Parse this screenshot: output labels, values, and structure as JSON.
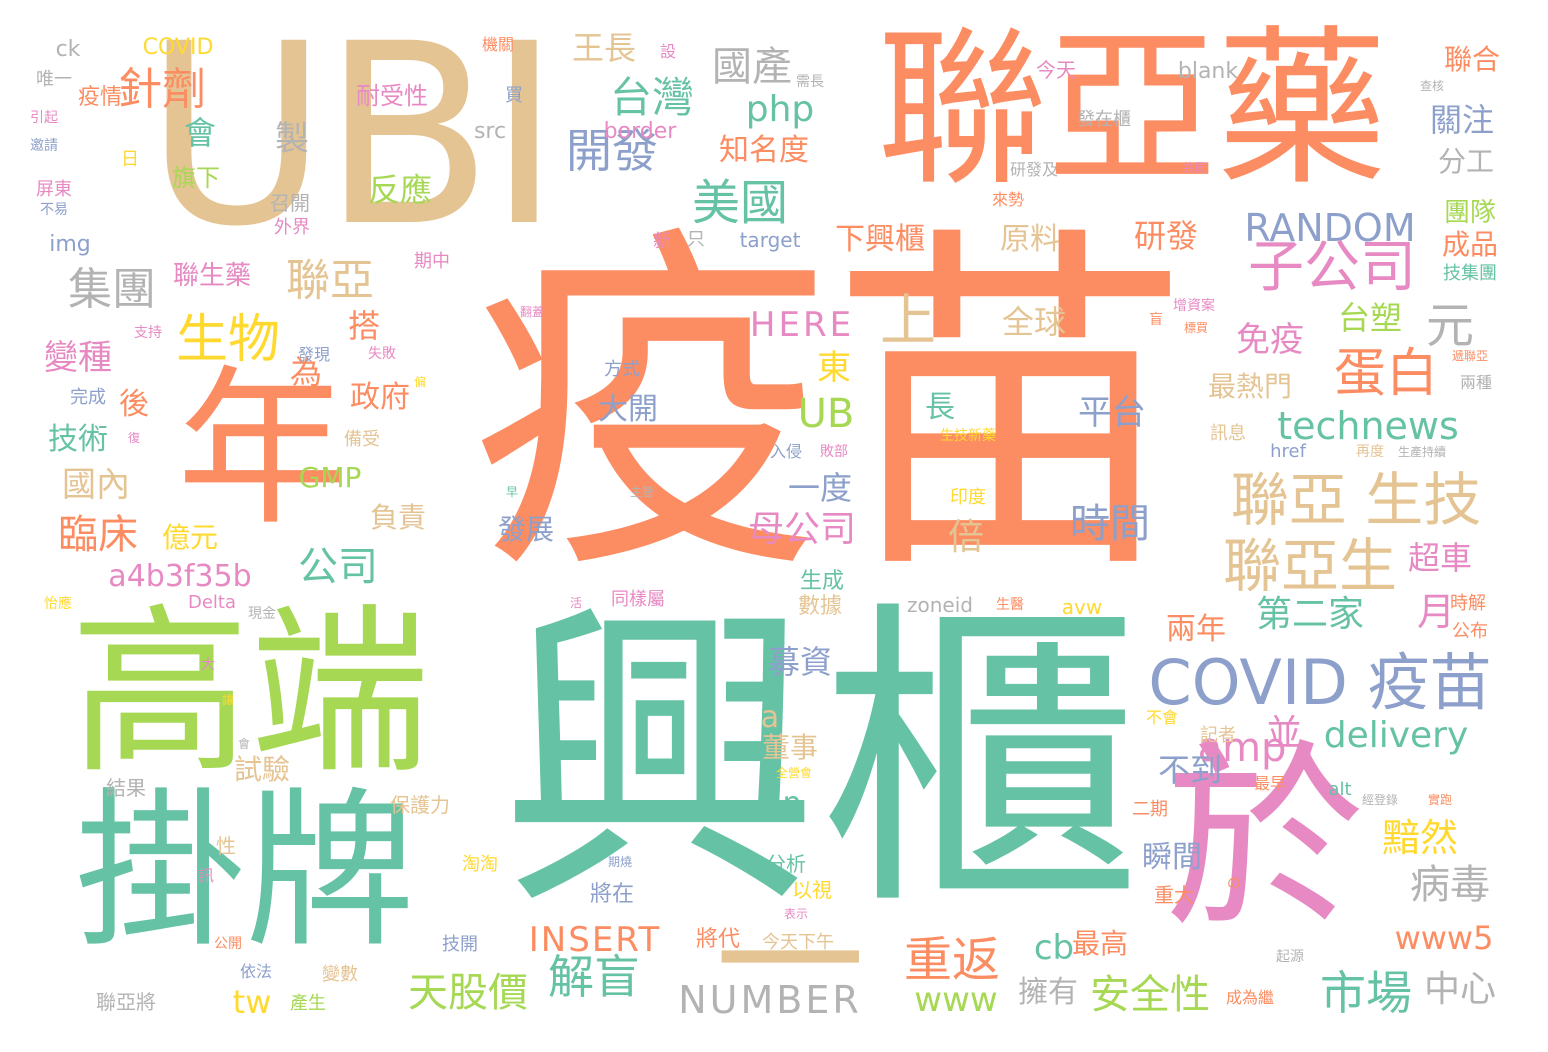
{
  "palette": {
    "green": "#66c2a5",
    "orange": "#fc8d62",
    "blue": "#8da0cb",
    "pink": "#e78ac3",
    "lime": "#a6d854",
    "yellow": "#ffd92f",
    "tan": "#e5c494",
    "gray": "#b3b3b3"
  },
  "words": [
    {
      "text": "疫苗",
      "color": "orange"
    },
    {
      "text": "興櫃",
      "color": "green"
    },
    {
      "text": "UBI",
      "color": "tan"
    },
    {
      "text": "聯亞藥",
      "color": "orange"
    },
    {
      "text": "高端",
      "color": "lime"
    },
    {
      "text": "掛牌",
      "color": "green"
    },
    {
      "text": "年",
      "color": "orange"
    },
    {
      "text": "於",
      "color": "pink"
    },
    {
      "text": "一",
      "color": "tan"
    },
    {
      "text": "COVID 疫苗",
      "color": "blue"
    },
    {
      "text": "聯亞 生技",
      "color": "tan"
    },
    {
      "text": "聯亞生",
      "color": "tan"
    },
    {
      "text": "子公司",
      "color": "pink"
    },
    {
      "text": "美國",
      "color": "green"
    },
    {
      "text": "生物",
      "color": "yellow"
    },
    {
      "text": "蛋白",
      "color": "orange"
    },
    {
      "text": "台灣",
      "color": "green"
    },
    {
      "text": "開發",
      "color": "blue"
    },
    {
      "text": "集團",
      "color": "gray"
    },
    {
      "text": "聯亞",
      "color": "tan"
    },
    {
      "text": "針劑",
      "color": "orange"
    },
    {
      "text": "國產",
      "color": "gray"
    },
    {
      "text": "重返",
      "color": "orange"
    },
    {
      "text": "市場",
      "color": "green"
    },
    {
      "text": "解盲",
      "color": "green"
    },
    {
      "text": "天股價",
      "color": "lime"
    },
    {
      "text": "安全性",
      "color": "lime"
    },
    {
      "text": "RANDOM",
      "color": "blue"
    },
    {
      "text": "technews",
      "color": "green"
    },
    {
      "text": "NUMBER",
      "color": "gray"
    },
    {
      "text": "amp",
      "color": "pink"
    },
    {
      "text": "delivery",
      "color": "green"
    },
    {
      "text": "公司",
      "color": "green"
    },
    {
      "text": "臨床",
      "color": "orange"
    },
    {
      "text": "a4b3f35b",
      "color": "pink"
    },
    {
      "text": "INSERT",
      "color": "orange"
    },
    {
      "text": "母公司",
      "color": "pink"
    },
    {
      "text": "第二家",
      "color": "green"
    },
    {
      "text": "病毒",
      "color": "gray"
    },
    {
      "text": "黯然",
      "color": "yellow"
    },
    {
      "text": "時間",
      "color": "blue"
    },
    {
      "text": "平台",
      "color": "blue"
    },
    {
      "text": "UB",
      "color": "lime"
    },
    {
      "text": "HERE",
      "color": "pink"
    },
    {
      "text": "www5",
      "color": "orange"
    },
    {
      "text": "中心",
      "color": "gray"
    },
    {
      "text": "www",
      "color": "lime"
    },
    {
      "text": "cb",
      "color": "green"
    },
    {
      "text": "tw",
      "color": "yellow"
    },
    {
      "text": "php",
      "color": "green"
    },
    {
      "text": "上",
      "color": "tan"
    },
    {
      "text": "元",
      "color": "gray"
    },
    {
      "text": "會",
      "color": "green"
    },
    {
      "text": "製",
      "color": "gray"
    },
    {
      "text": "反應",
      "color": "lime"
    },
    {
      "text": "知名度",
      "color": "orange"
    },
    {
      "text": "王長",
      "color": "tan"
    },
    {
      "text": "下興櫃",
      "color": "orange"
    },
    {
      "text": "原料",
      "color": "tan"
    },
    {
      "text": "研發",
      "color": "orange"
    },
    {
      "text": "全球",
      "color": "tan"
    },
    {
      "text": "免疫",
      "color": "pink"
    },
    {
      "text": "台塑",
      "color": "lime"
    },
    {
      "text": "關注",
      "color": "blue"
    },
    {
      "text": "分工",
      "color": "gray"
    },
    {
      "text": "團隊",
      "color": "lime"
    },
    {
      "text": "成品",
      "color": "orange"
    },
    {
      "text": "聯合",
      "color": "orange"
    },
    {
      "text": "最熱門",
      "color": "tan"
    },
    {
      "text": "長",
      "color": "green"
    },
    {
      "text": "倍",
      "color": "tan"
    },
    {
      "text": "一度",
      "color": "blue"
    },
    {
      "text": "大開",
      "color": "blue"
    },
    {
      "text": "發展",
      "color": "blue"
    },
    {
      "text": "募資",
      "color": "blue"
    },
    {
      "text": "董事",
      "color": "tan"
    },
    {
      "text": "不到",
      "color": "blue"
    },
    {
      "text": "瞬間",
      "color": "blue"
    },
    {
      "text": "兩年",
      "color": "orange"
    },
    {
      "text": "月",
      "color": "pink"
    },
    {
      "text": "超車",
      "color": "pink"
    },
    {
      "text": "並",
      "color": "pink"
    },
    {
      "text": "n",
      "color": "green"
    },
    {
      "text": "a",
      "color": "tan"
    },
    {
      "text": "試驗",
      "color": "tan"
    },
    {
      "text": "擁有",
      "color": "gray"
    },
    {
      "text": "最高",
      "color": "orange"
    },
    {
      "text": "變種",
      "color": "pink"
    },
    {
      "text": "技術",
      "color": "green"
    },
    {
      "text": "國內",
      "color": "tan"
    },
    {
      "text": "億元",
      "color": "yellow"
    },
    {
      "text": "後",
      "color": "orange"
    },
    {
      "text": "GMP",
      "color": "lime"
    },
    {
      "text": "負責",
      "color": "tan"
    },
    {
      "text": "政府",
      "color": "orange"
    },
    {
      "text": "東",
      "color": "yellow"
    },
    {
      "text": "為",
      "color": "orange"
    },
    {
      "text": "搭",
      "color": "orange"
    },
    {
      "text": "聯生藥",
      "color": "pink"
    },
    {
      "text": "旗下",
      "color": "lime"
    },
    {
      "text": "耐受性",
      "color": "pink"
    },
    {
      "text": "疫情",
      "color": "orange"
    },
    {
      "text": "COVID",
      "color": "yellow"
    },
    {
      "text": "ck",
      "color": "gray"
    },
    {
      "text": "唯一",
      "color": "gray"
    },
    {
      "text": "機關",
      "color": "orange"
    },
    {
      "text": "設",
      "color": "pink"
    },
    {
      "text": "今天",
      "color": "pink"
    },
    {
      "text": "blank",
      "color": "gray"
    },
    {
      "text": "border",
      "color": "pink"
    },
    {
      "text": "src",
      "color": "gray"
    },
    {
      "text": "img",
      "color": "blue"
    },
    {
      "text": "target",
      "color": "blue"
    },
    {
      "text": "zoneid",
      "color": "gray"
    },
    {
      "text": "avw",
      "color": "yellow"
    },
    {
      "text": "href",
      "color": "blue"
    },
    {
      "text": "alt",
      "color": "green"
    },
    {
      "text": "Delta",
      "color": "pink"
    },
    {
      "text": "召開",
      "color": "gray"
    },
    {
      "text": "外界",
      "color": "pink"
    },
    {
      "text": "期中",
      "color": "pink"
    },
    {
      "text": "發在櫃",
      "color": "gray"
    },
    {
      "text": "研發及",
      "color": "gray"
    },
    {
      "text": "來勢",
      "color": "orange"
    },
    {
      "text": "技集團",
      "color": "green"
    },
    {
      "text": "生成",
      "color": "green"
    },
    {
      "text": "數據",
      "color": "tan"
    },
    {
      "text": "同樣屬",
      "color": "pink"
    },
    {
      "text": "時解",
      "color": "orange"
    },
    {
      "text": "公布",
      "color": "orange"
    },
    {
      "text": "方式",
      "color": "blue"
    },
    {
      "text": "訊息",
      "color": "tan"
    },
    {
      "text": "兩種",
      "color": "gray"
    },
    {
      "text": "印度",
      "color": "yellow"
    },
    {
      "text": "生技新藥",
      "color": "yellow"
    },
    {
      "text": "分析",
      "color": "green"
    },
    {
      "text": "以視",
      "color": "yellow"
    },
    {
      "text": "將在",
      "color": "blue"
    },
    {
      "text": "將代",
      "color": "orange"
    },
    {
      "text": "技開",
      "color": "blue"
    },
    {
      "text": "今天下午",
      "color": "tan"
    },
    {
      "text": "重大",
      "color": "orange"
    },
    {
      "text": "二期",
      "color": "orange"
    },
    {
      "text": "記者",
      "color": "tan"
    },
    {
      "text": "不會",
      "color": "yellow"
    },
    {
      "text": "保護力",
      "color": "tan"
    },
    {
      "text": "淘淘",
      "color": "yellow"
    },
    {
      "text": "結果",
      "color": "gray"
    },
    {
      "text": "聯亞將",
      "color": "gray"
    },
    {
      "text": "產生",
      "color": "lime"
    },
    {
      "text": "變數",
      "color": "tan"
    },
    {
      "text": "依法",
      "color": "blue"
    },
    {
      "text": "公開",
      "color": "orange"
    },
    {
      "text": "成為繼",
      "color": "orange"
    },
    {
      "text": "最早",
      "color": "orange"
    },
    {
      "text": "屏東",
      "color": "pink"
    },
    {
      "text": "引起",
      "color": "pink"
    },
    {
      "text": "邀請",
      "color": "blue"
    },
    {
      "text": "不易",
      "color": "blue"
    },
    {
      "text": "日",
      "color": "yellow"
    },
    {
      "text": "買",
      "color": "blue"
    },
    {
      "text": "新",
      "color": "pink"
    },
    {
      "text": "只",
      "color": "gray"
    },
    {
      "text": "發現",
      "color": "blue"
    },
    {
      "text": "失敗",
      "color": "pink"
    },
    {
      "text": "支持",
      "color": "pink"
    },
    {
      "text": "完成",
      "color": "blue"
    },
    {
      "text": "備受",
      "color": "tan"
    },
    {
      "text": "怡應",
      "color": "yellow"
    },
    {
      "text": "現金",
      "color": "gray"
    },
    {
      "text": "大",
      "color": "pink"
    },
    {
      "text": "性",
      "color": "tan"
    },
    {
      "text": "訊",
      "color": "pink"
    },
    {
      "text": "起源",
      "color": "gray"
    },
    {
      "text": "入侵",
      "color": "blue"
    },
    {
      "text": "敗部",
      "color": "pink"
    },
    {
      "text": "再度",
      "color": "tan"
    },
    {
      "text": "生產持續",
      "color": "gray"
    },
    {
      "text": "增資案",
      "color": "pink"
    },
    {
      "text": "標買",
      "color": "orange"
    },
    {
      "text": "盲",
      "color": "orange"
    },
    {
      "text": "共買",
      "color": "pink"
    },
    {
      "text": "查核",
      "color": "gray"
    },
    {
      "text": "需長",
      "color": "gray"
    },
    {
      "text": "翻蓋",
      "color": "pink"
    },
    {
      "text": "主管",
      "color": "gray"
    },
    {
      "text": "早",
      "color": "green"
    },
    {
      "text": "活",
      "color": "pink"
    },
    {
      "text": "生醫",
      "color": "orange"
    },
    {
      "text": "表示",
      "color": "pink"
    },
    {
      "text": "期燒",
      "color": "blue"
    },
    {
      "text": "經登錄",
      "color": "gray"
    },
    {
      "text": "實跑",
      "color": "orange"
    },
    {
      "text": "遞聯亞",
      "color": "orange"
    },
    {
      "text": "全營會",
      "color": "yellow"
    },
    {
      "text": "會",
      "color": "gray"
    },
    {
      "text": "讓",
      "color": "yellow"
    },
    {
      "text": "偏",
      "color": "yellow"
    },
    {
      "text": "復",
      "color": "pink"
    },
    {
      "text": "の",
      "color": "orange"
    }
  ]
}
